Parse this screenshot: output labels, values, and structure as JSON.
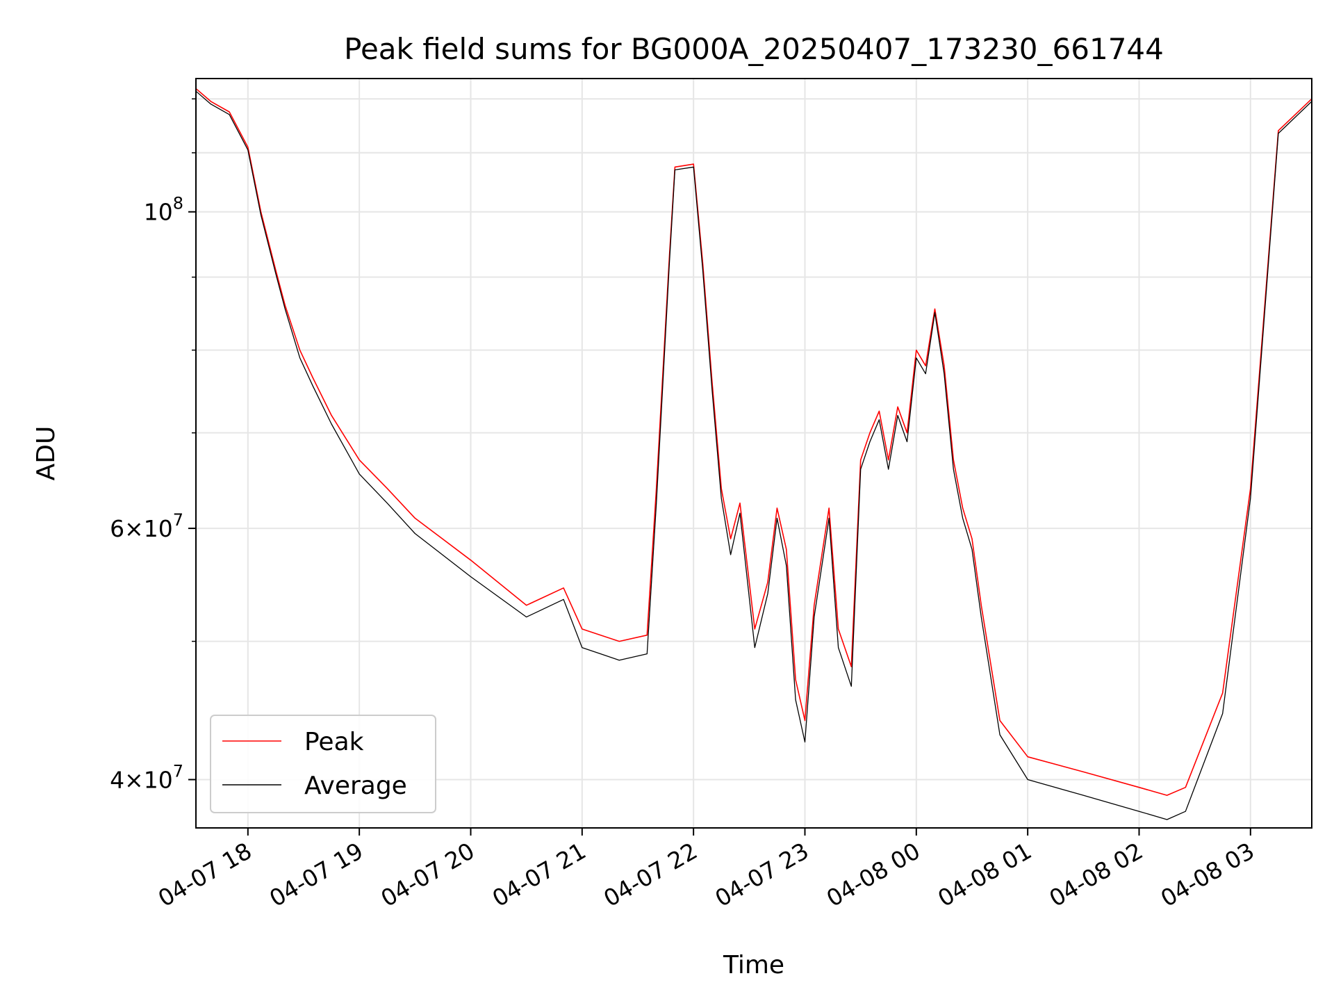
{
  "chart_data": {
    "type": "line",
    "title": "Peak field sums for BG000A_20250407_173230_661744",
    "xlabel": "Time",
    "ylabel": "ADU",
    "yscale": "log",
    "ylim": [
      37000000,
      124000000
    ],
    "xlim": [
      "04-07 17:32",
      "04-08 03:33"
    ],
    "grid": true,
    "legend_position": "lower-left",
    "x_tick_labels": [
      "04-07 18",
      "04-07 19",
      "04-07 20",
      "04-07 21",
      "04-07 22",
      "04-07 23",
      "04-08 00",
      "04-08 01",
      "04-08 02",
      "04-08 03"
    ],
    "y_tick_labels": [
      {
        "value": 100000000,
        "base": "10",
        "exp": "8"
      },
      {
        "value": 60000000,
        "mant": "6",
        "base": "10",
        "exp": "7"
      },
      {
        "value": 40000000,
        "mant": "4",
        "base": "10",
        "exp": "7"
      }
    ],
    "x": [
      "04-07 17:32",
      "04-07 17:40",
      "04-07 17:50",
      "04-07 18:00",
      "04-07 18:07",
      "04-07 18:15",
      "04-07 18:20",
      "04-07 18:28",
      "04-07 18:35",
      "04-07 18:45",
      "04-07 19:00",
      "04-07 19:15",
      "04-07 19:30",
      "04-07 20:00",
      "04-07 20:30",
      "04-07 20:50",
      "04-07 21:00",
      "04-07 21:10",
      "04-07 21:20",
      "04-07 21:35",
      "04-07 21:40",
      "04-07 21:47",
      "04-07 21:50",
      "04-07 22:00",
      "04-07 22:05",
      "04-07 22:10",
      "04-07 22:15",
      "04-07 22:20",
      "04-07 22:25",
      "04-07 22:33",
      "04-07 22:40",
      "04-07 22:45",
      "04-07 22:50",
      "04-07 22:55",
      "04-07 23:00",
      "04-07 23:05",
      "04-07 23:13",
      "04-07 23:18",
      "04-07 23:25",
      "04-07 23:30",
      "04-07 23:35",
      "04-07 23:40",
      "04-07 23:45",
      "04-07 23:50",
      "04-07 23:55",
      "04-08 00:00",
      "04-08 00:05",
      "04-08 00:10",
      "04-08 00:15",
      "04-08 00:20",
      "04-08 00:25",
      "04-08 00:30",
      "04-08 00:35",
      "04-08 00:45",
      "04-08 01:00",
      "04-08 01:30",
      "04-08 02:00",
      "04-08 02:15",
      "04-08 02:25",
      "04-08 02:45",
      "04-08 03:00",
      "04-08 03:15",
      "04-08 03:33"
    ],
    "series": [
      {
        "name": "Peak",
        "color": "#ff0000",
        "values": [
          122000000,
          119500000,
          117500000,
          111000000,
          100000000,
          91000000,
          86000000,
          80000000,
          76500000,
          72000000,
          67000000,
          64000000,
          61000000,
          57000000,
          53000000,
          54500000,
          51000000,
          50500000,
          50000000,
          50500000,
          64000000,
          93000000,
          107500000,
          108000000,
          92000000,
          76000000,
          64000000,
          59000000,
          62500000,
          51000000,
          55000000,
          62000000,
          58000000,
          47000000,
          44000000,
          53000000,
          62000000,
          51000000,
          48000000,
          67000000,
          70000000,
          72500000,
          67000000,
          73000000,
          70000000,
          80000000,
          78000000,
          85500000,
          78000000,
          67000000,
          62000000,
          59000000,
          53000000,
          44000000,
          41500000,
          40500000,
          39500000,
          39000000,
          39500000,
          46000000,
          64000000,
          114000000,
          120000000
        ]
      },
      {
        "name": "Average",
        "color": "#000000",
        "values": [
          121500000,
          119000000,
          117000000,
          110500000,
          99500000,
          90500000,
          85500000,
          79000000,
          75500000,
          71000000,
          65500000,
          62500000,
          59500000,
          55500000,
          52000000,
          53500000,
          49500000,
          49000000,
          48500000,
          49000000,
          62500000,
          92000000,
          107000000,
          107500000,
          91000000,
          75000000,
          63000000,
          57500000,
          61500000,
          49500000,
          54000000,
          61000000,
          56500000,
          45500000,
          42500000,
          52000000,
          61000000,
          49500000,
          46500000,
          66000000,
          69000000,
          71500000,
          66000000,
          72000000,
          69000000,
          79000000,
          77000000,
          85000000,
          77000000,
          66000000,
          61000000,
          58000000,
          52000000,
          43000000,
          40000000,
          39000000,
          38000000,
          37500000,
          38000000,
          44500000,
          63000000,
          113500000,
          119500000
        ]
      }
    ]
  }
}
